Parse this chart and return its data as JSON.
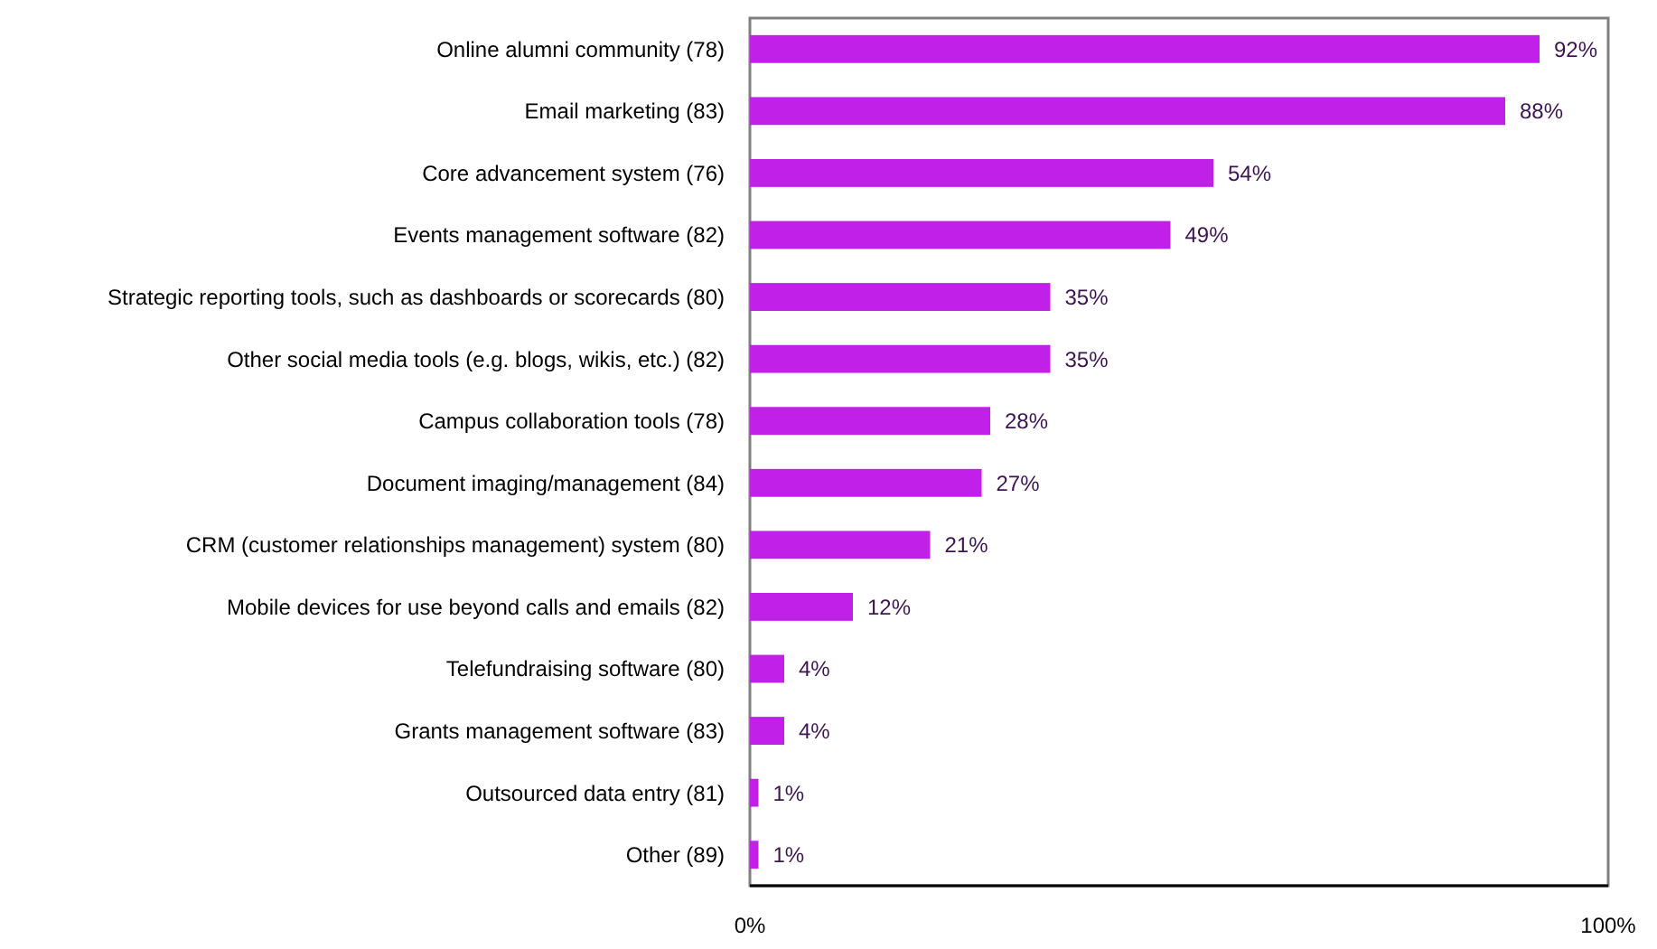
{
  "chart_data": {
    "type": "bar",
    "orientation": "horizontal",
    "categories": [
      "Online alumni community (78)",
      "Email marketing (83)",
      "Core advancement system (76)",
      "Events management software (82)",
      "Strategic reporting tools, such as dashboards or scorecards (80)",
      "Other social media tools (e.g. blogs, wikis, etc.) (82)",
      "Campus collaboration tools (78)",
      "Document imaging/management (84)",
      "CRM (customer relationships management) system (80)",
      "Mobile devices for use beyond calls and emails (82)",
      "Telefundraising software (80)",
      "Grants management software (83)",
      "Outsourced data entry (81)",
      "Other (89)"
    ],
    "values": [
      92,
      88,
      54,
      49,
      35,
      35,
      28,
      27,
      21,
      12,
      4,
      4,
      1,
      1
    ],
    "value_labels": [
      "92%",
      "88%",
      "54%",
      "49%",
      "35%",
      "35%",
      "28%",
      "27%",
      "21%",
      "12%",
      "4%",
      "4%",
      "1%",
      "1%"
    ],
    "color": "#c020e8",
    "xlim": [
      0,
      100
    ],
    "xticks": [
      {
        "value": 0,
        "label": "0%"
      },
      {
        "value": 100,
        "label": "100%"
      }
    ]
  }
}
